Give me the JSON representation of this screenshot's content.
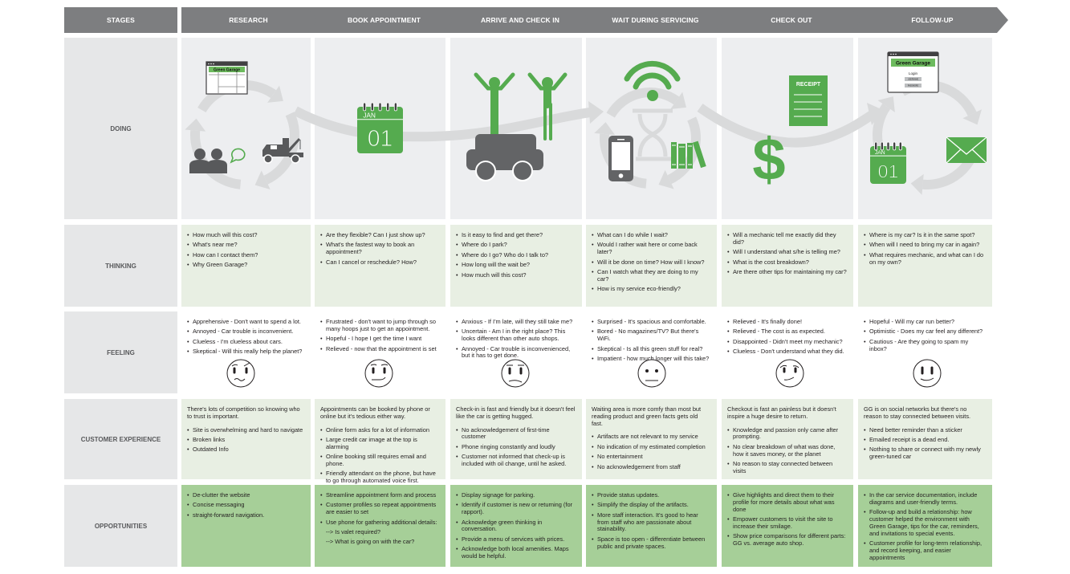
{
  "header": {
    "stages_label": "STAGES"
  },
  "rows": {
    "doing": "DOING",
    "thinking": "THINKING",
    "feeling": "FEELING",
    "cx": "CUSTOMER EXPERIENCE",
    "opportunities": "OPPORTUNITIES"
  },
  "colors": {
    "header": "#7d7e80",
    "green": "#55ab4f",
    "dark_icon": "#636466",
    "opportunities_bg": "#a6cf98",
    "thinking_bg": "#e8efe3",
    "doing_bg": "#edeef0"
  },
  "icons": {
    "research": [
      "browser-window-icon",
      "people-chat-icon",
      "tow-truck-icon",
      "cycle-arrows-icon"
    ],
    "book": [
      "calendar-icon"
    ],
    "arrive": [
      "car-icon",
      "cheering-people-icon"
    ],
    "wait": [
      "wifi-icon",
      "hourglass-icon",
      "phone-icon",
      "books-icon",
      "cycle-arrows-icon"
    ],
    "checkout": [
      "receipt-icon",
      "dollar-icon"
    ],
    "followup": [
      "browser-login-icon",
      "calendar-icon",
      "envelope-icon",
      "cycle-arrows-icon"
    ]
  },
  "doing_art": {
    "brand": "Green Garage",
    "calendar_month": "JAN",
    "calendar_day": "01",
    "receipt": "RECEIPT",
    "login": "Login",
    "username": "USERNAME",
    "password": "PASSWORD"
  },
  "stages": [
    {
      "name": "RESEARCH",
      "thinking": [
        "How much will this cost?",
        "What's near me?",
        "How can I contact them?",
        "Why Green Garage?"
      ],
      "feeling": [
        "Apprehensive - Don't want to spend a lot.",
        "Annoyed - Car trouble is inconvenient.",
        "Clueless - I'm clueless about cars.",
        "Skeptical - Will this really help the planet?"
      ],
      "cx": {
        "intro": "There's lots of competition so knowing who to trust is important.",
        "items": [
          "Site is overwhelming and hard to navigate",
          "Broken links",
          "Outdated Info"
        ]
      },
      "opportunities": [
        "De-clutter the website",
        "Concise messaging",
        "straight-forward navigation."
      ]
    },
    {
      "name": "BOOK APPOINTMENT",
      "thinking": [
        "Are they flexible? Can I just show up?",
        "What's the fastest way to book an appointment?",
        "Can I cancel or reschedule? How?"
      ],
      "feeling": [
        "Frustrated - don't want to jump through so many hoops just to get an appointment.",
        "Hopeful - I hope I get the time I want",
        "Relieved - now that the appointment is set"
      ],
      "cx": {
        "intro": "Appointments can be booked by phone or online but it's tedious either way.",
        "items": [
          "Online form asks for a lot of information",
          "Large credit car image at the top is alarming",
          "Online booking still requires email and phone.",
          "Friendly attendant on the phone, but have to go through automated voice first."
        ]
      },
      "opportunities": [
        "Streamline appointment form and process",
        "Customer profiles so repeat appointments are easier to set",
        "Use phone for gathering additional details:",
        "--> Is valet required?",
        "--> What is going on with the car?"
      ]
    },
    {
      "name": "ARRIVE AND CHECK IN",
      "thinking": [
        "Is it easy to find and get there?",
        "Where do I park?",
        "Where do I go? Who do I talk to?",
        "How long will the wait be?",
        "How much will this cost?"
      ],
      "feeling": [
        "Anxious - If I'm late, will they still take me?",
        "Uncertain - Am I in the right place? This looks different than other auto shops.",
        "Annoyed - Car trouble is inconvenienced, but it has to get done."
      ],
      "cx": {
        "intro": "Check-in is fast and friendly but it doesn't feel like the car is getting hugged.",
        "items": [
          "No acknowledgement of first-time customer",
          "Phone ringing constantly and loudly",
          "Customer not informed that check-up is included with oil change, until he asked."
        ]
      },
      "opportunities": [
        "Display signage for parking.",
        "Identify if customer is new or returning (for rapport).",
        "Acknowledge green thinking in conversation.",
        "Provide a menu of services with prices.",
        "Acknowledge both local amenities. Maps would be helpful."
      ]
    },
    {
      "name": "WAIT DURING SERVICING",
      "thinking": [
        "What can I do while I wait?",
        "Would I rather wait here or come back later?",
        "Will it be done on time? How will I know?",
        "Can I watch what they are doing to my car?",
        "How is my service eco-friendly?"
      ],
      "feeling": [
        "Surprised - It's spacious and comfortable.",
        "Bored - No magazines/TV? But there's WiFi.",
        "Skeptical - Is all this green stuff for real?",
        "Impatient - how much longer will this take?"
      ],
      "cx": {
        "intro": "Waiting area is more comfy than most but reading product and green facts gets old fast.",
        "items": [
          "Artifacts are not relevant to my service",
          "No indication of my estimated completion",
          "No entertainment",
          "No acknowledgement from staff"
        ]
      },
      "opportunities": [
        "Provide status updates.",
        "Simplify the display of the artifacts.",
        "More staff interaction. It's good to hear from staff who are passionate about stainability.",
        "Space is too open - differentiate between public and private spaces."
      ]
    },
    {
      "name": "CHECK OUT",
      "thinking": [
        "Will a mechanic tell me exactly did they did?",
        "Will I understand what s/he is telling me?",
        "What is the cost breakdown?",
        "Are there other tips for maintaining my car?"
      ],
      "feeling": [
        "Relieved - It's finally done!",
        "Relieved - The cost is as expected.",
        "Disappointed - Didn't meet my mechanic?",
        "Clueless - Don't understand what they did."
      ],
      "cx": {
        "intro": "Checkout is fast an painless but it doesn't inspire a huge desire to return.",
        "items": [
          "Knowledge and passion only came after prompting.",
          "No clear breakdown of what was done, how it saves money, or the planet",
          "No reason to stay connected between visits"
        ]
      },
      "opportunities": [
        "Give highlights and direct them to their profile for more details about what was done",
        "Empower customers to visit the site to increase their smilage.",
        "Show price comparisons for different parts: GG vs. average auto shop."
      ]
    },
    {
      "name": "FOLLOW-UP",
      "thinking": [
        "Where is my car? Is it in the same spot?",
        "When will I need to bring my car in again?",
        "What requires mechanic, and what can I do on my own?"
      ],
      "feeling": [
        "Hopeful - Will my car run better?",
        "Optimistic - Does my car feel any different?",
        "Cautious - Are they going to spam my inbox?"
      ],
      "cx": {
        "intro": "GG is on social networks but there's no reason to stay connected between visits.",
        "items": [
          "Need better reminder than a sticker",
          "Emailed receipt is a dead end.",
          "Nothing to share or connect with my newly green-tuned car"
        ]
      },
      "opportunities": [
        "In the car service documentation, include diagrams and user-friendly terms.",
        "Follow-up and build a relationship: how customer helped the environment with Green Garage, tips for the car, reminders, and invitations to special events.",
        "Customer profile for long-term relationship, and record keeping, and easier appointments"
      ]
    }
  ]
}
